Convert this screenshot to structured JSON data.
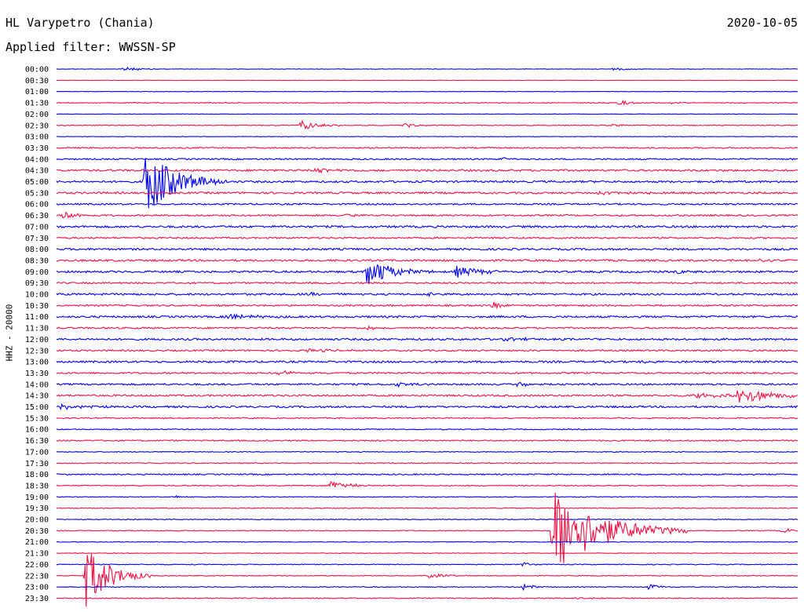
{
  "header": {
    "station": "HL Varypetro (Chania)",
    "date": "2020-10-05",
    "filter": "Applied filter: WWSSN-SP"
  },
  "chart_data": {
    "type": "line",
    "channel_label": "HHZ - 20000",
    "row_labels": [
      "00:00",
      "00:30",
      "01:00",
      "01:30",
      "02:00",
      "02:30",
      "03:00",
      "03:30",
      "04:00",
      "04:30",
      "05:00",
      "05:30",
      "06:00",
      "06:30",
      "07:00",
      "07:30",
      "08:00",
      "08:30",
      "09:00",
      "09:30",
      "10:00",
      "10:30",
      "11:00",
      "11:30",
      "12:00",
      "12:30",
      "13:00",
      "13:30",
      "14:00",
      "14:30",
      "15:00",
      "15:30",
      "16:00",
      "16:30",
      "17:00",
      "17:30",
      "18:00",
      "18:30",
      "19:00",
      "19:30",
      "20:00",
      "20:30",
      "21:00",
      "21:30",
      "22:00",
      "22:30",
      "23:00",
      "23:30"
    ],
    "row_colors": [
      "#0000ee",
      "#ee1144"
    ],
    "row_noise": [
      0.3,
      0.2,
      0.25,
      0.5,
      0.3,
      0.5,
      0.3,
      0.8,
      0.9,
      1.2,
      1.2,
      1.2,
      1.0,
      1.0,
      1.3,
      1.0,
      1.2,
      1.2,
      1.2,
      1.0,
      1.2,
      1.0,
      1.2,
      1.0,
      1.2,
      1.0,
      1.2,
      1.0,
      1.1,
      1.1,
      1.2,
      0.7,
      0.6,
      0.8,
      0.5,
      0.6,
      0.8,
      0.6,
      0.5,
      0.5,
      0.5,
      0.5,
      0.4,
      0.4,
      0.5,
      0.5,
      0.5,
      0.6
    ],
    "events": [
      {
        "row": 0,
        "t": 0.09,
        "amp": 3,
        "dur": 0.02
      },
      {
        "row": 0,
        "t": 0.75,
        "amp": 2,
        "dur": 0.02
      },
      {
        "row": 3,
        "t": 0.76,
        "amp": 3,
        "dur": 0.015
      },
      {
        "row": 3,
        "t": 0.83,
        "amp": 2,
        "dur": 0.01
      },
      {
        "row": 5,
        "t": 0.33,
        "amp": 6,
        "dur": 0.02
      },
      {
        "row": 5,
        "t": 0.47,
        "amp": 3,
        "dur": 0.015
      },
      {
        "row": 5,
        "t": 0.75,
        "amp": 2,
        "dur": 0.01
      },
      {
        "row": 8,
        "t": 0.6,
        "amp": 2,
        "dur": 0.02
      },
      {
        "row": 9,
        "t": 0.35,
        "amp": 3,
        "dur": 0.03
      },
      {
        "row": 10,
        "t": 0.12,
        "amp": 40,
        "dur": 0.04
      },
      {
        "row": 11,
        "t": 0.73,
        "amp": 3,
        "dur": 0.04
      },
      {
        "row": 13,
        "t": 0.01,
        "amp": 5,
        "dur": 0.02
      },
      {
        "row": 13,
        "t": 0.39,
        "amp": 2,
        "dur": 0.015
      },
      {
        "row": 17,
        "t": 0.94,
        "amp": 3,
        "dur": 0.02
      },
      {
        "row": 18,
        "t": 0.42,
        "amp": 20,
        "dur": 0.03
      },
      {
        "row": 18,
        "t": 0.54,
        "amp": 7,
        "dur": 0.03
      },
      {
        "row": 18,
        "t": 0.84,
        "amp": 3,
        "dur": 0.01
      },
      {
        "row": 20,
        "t": 0.34,
        "amp": 2,
        "dur": 0.02
      },
      {
        "row": 20,
        "t": 0.5,
        "amp": 2,
        "dur": 0.02
      },
      {
        "row": 21,
        "t": 0.59,
        "amp": 7,
        "dur": 0.01
      },
      {
        "row": 22,
        "t": 0.23,
        "amp": 5,
        "dur": 0.03
      },
      {
        "row": 23,
        "t": 0.42,
        "amp": 3,
        "dur": 0.01
      },
      {
        "row": 24,
        "t": 0.6,
        "amp": 2,
        "dur": 0.04
      },
      {
        "row": 25,
        "t": 0.34,
        "amp": 2,
        "dur": 0.04
      },
      {
        "row": 26,
        "t": 0.79,
        "amp": 2,
        "dur": 0.01
      },
      {
        "row": 27,
        "t": 0.3,
        "amp": 4,
        "dur": 0.015
      },
      {
        "row": 28,
        "t": 0.46,
        "amp": 4,
        "dur": 0.015
      },
      {
        "row": 28,
        "t": 0.62,
        "amp": 4,
        "dur": 0.015
      },
      {
        "row": 29,
        "t": 0.92,
        "amp": 12,
        "dur": 0.04
      },
      {
        "row": 29,
        "t": 0.86,
        "amp": 3,
        "dur": 0.05
      },
      {
        "row": 30,
        "t": 0.0,
        "amp": 4,
        "dur": 0.03
      },
      {
        "row": 37,
        "t": 0.37,
        "amp": 7,
        "dur": 0.02
      },
      {
        "row": 38,
        "t": 0.16,
        "amp": 2,
        "dur": 0.01
      },
      {
        "row": 41,
        "t": 0.67,
        "amp": 55,
        "dur": 0.06
      },
      {
        "row": 41,
        "t": 0.98,
        "amp": 4,
        "dur": 0.01
      },
      {
        "row": 44,
        "t": 0.63,
        "amp": 3,
        "dur": 0.01
      },
      {
        "row": 45,
        "t": 0.04,
        "amp": 40,
        "dur": 0.03
      },
      {
        "row": 45,
        "t": 0.5,
        "amp": 4,
        "dur": 0.02
      },
      {
        "row": 46,
        "t": 0.63,
        "amp": 4,
        "dur": 0.015
      },
      {
        "row": 46,
        "t": 0.8,
        "amp": 4,
        "dur": 0.015
      },
      {
        "row": 47,
        "t": 0.7,
        "amp": 2,
        "dur": 0.02
      }
    ]
  }
}
